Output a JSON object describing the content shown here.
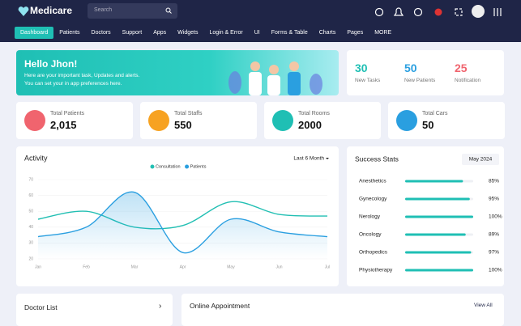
{
  "header": {
    "logo": "Medicare",
    "search_placeholder": "Search"
  },
  "nav": [
    "Dashboard",
    "Patients",
    "Doctors",
    "Support",
    "Apps",
    "Widgets",
    "Login & Error",
    "UI",
    "Forms & Table",
    "Charts",
    "Pages",
    "MORE"
  ],
  "welcome": {
    "title": "Hello Jhon!",
    "line1": "Here are your important task, Updates and alerts.",
    "line2": "You can set your in app preferences here."
  },
  "quick_stats": [
    {
      "value": "30",
      "label": "New Tasks"
    },
    {
      "value": "50",
      "label": "New Patients"
    },
    {
      "value": "25",
      "label": "Notification"
    }
  ],
  "cards": [
    {
      "label": "Total Patients",
      "value": "2,015"
    },
    {
      "label": "Total Staffs",
      "value": "550"
    },
    {
      "label": "Total Rooms",
      "value": "2000"
    },
    {
      "label": "Total Cars",
      "value": "50"
    }
  ],
  "chart_data": {
    "type": "line",
    "title": "Activity",
    "period": "Last 6 Month",
    "categories": [
      "Jan",
      "Feb",
      "Mar",
      "Apr",
      "May",
      "Jun",
      "Jul"
    ],
    "series": [
      {
        "name": "Consultation",
        "color": "#22bfb3",
        "values": [
          45,
          50,
          40,
          41,
          56,
          48,
          47
        ]
      },
      {
        "name": "Patients",
        "color": "#2a9fe0",
        "values": [
          34,
          40,
          62,
          24,
          45,
          37,
          34
        ]
      }
    ],
    "ylim": [
      20,
      70
    ],
    "yticks": [
      20,
      30,
      40,
      50,
      60,
      70
    ],
    "grid": true
  },
  "success_stats": {
    "title": "Success Stats",
    "period": "May 2024",
    "xlim": [
      0,
      100
    ],
    "color": "#1fbfb4",
    "categories": [
      "Anesthetics",
      "Gynecology",
      "Nerology",
      "Oncology",
      "Orthopedics",
      "Physiotherapy"
    ],
    "values": [
      85,
      95,
      100,
      89,
      97,
      100
    ],
    "value_labels": [
      "85%",
      "95%",
      "100%",
      "89%",
      "97%",
      "100%"
    ]
  },
  "doctor_list": {
    "title": "Doctor List"
  },
  "appointment": {
    "title": "Online Appointment",
    "link": "View All"
  }
}
